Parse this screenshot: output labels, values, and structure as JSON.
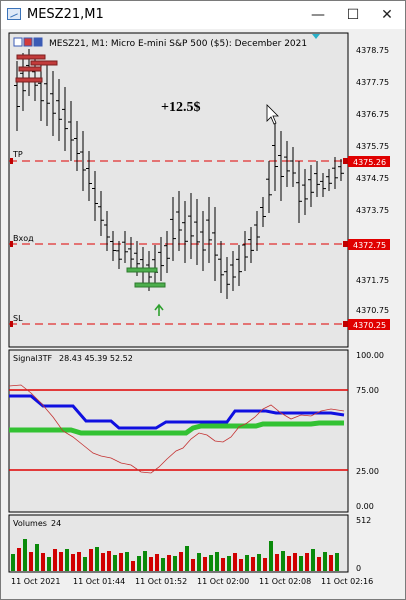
{
  "window": {
    "title": "MESZ21,M1",
    "minimize_icon": "minimize-icon",
    "maximize_icon": "maximize-icon",
    "close_icon": "close-icon"
  },
  "main_chart": {
    "header": "MESZ21, M1:  Micro E-mini S&P 500 ($5): December 2021",
    "profit_label": "+12.5$",
    "price_axis": [
      "4378.75",
      "4377.75",
      "4376.75",
      "4375.75",
      "4374.75",
      "4373.75",
      "4372.75",
      "4371.75",
      "4370.75"
    ],
    "lines": {
      "tp": {
        "label": "TP",
        "price": "4375.26"
      },
      "entry": {
        "label": "Вход",
        "price": "4372.75"
      },
      "sl": {
        "label": "SL",
        "price": "4370.25"
      }
    },
    "colors": {
      "level_line": "#e00000",
      "price_tag_bg": "#e00000",
      "bar": "#000000",
      "trade_green": "#2ea02e",
      "trade_red": "#c23b3b"
    }
  },
  "indicator": {
    "name": "Signal3TF",
    "values_text": "28.43 45.39 52.52",
    "axis": [
      "100.00",
      "75.00",
      "25.00",
      "0.00"
    ]
  },
  "volumes": {
    "name": "Volumes",
    "value": "24",
    "axis": [
      "512",
      "0"
    ]
  },
  "time_axis": [
    "11 Oct 2021",
    "11 Oct 01:44",
    "11 Oct 01:52",
    "11 Oct 02:00",
    "11 Oct 02:08",
    "11 Oct 02:16"
  ]
}
